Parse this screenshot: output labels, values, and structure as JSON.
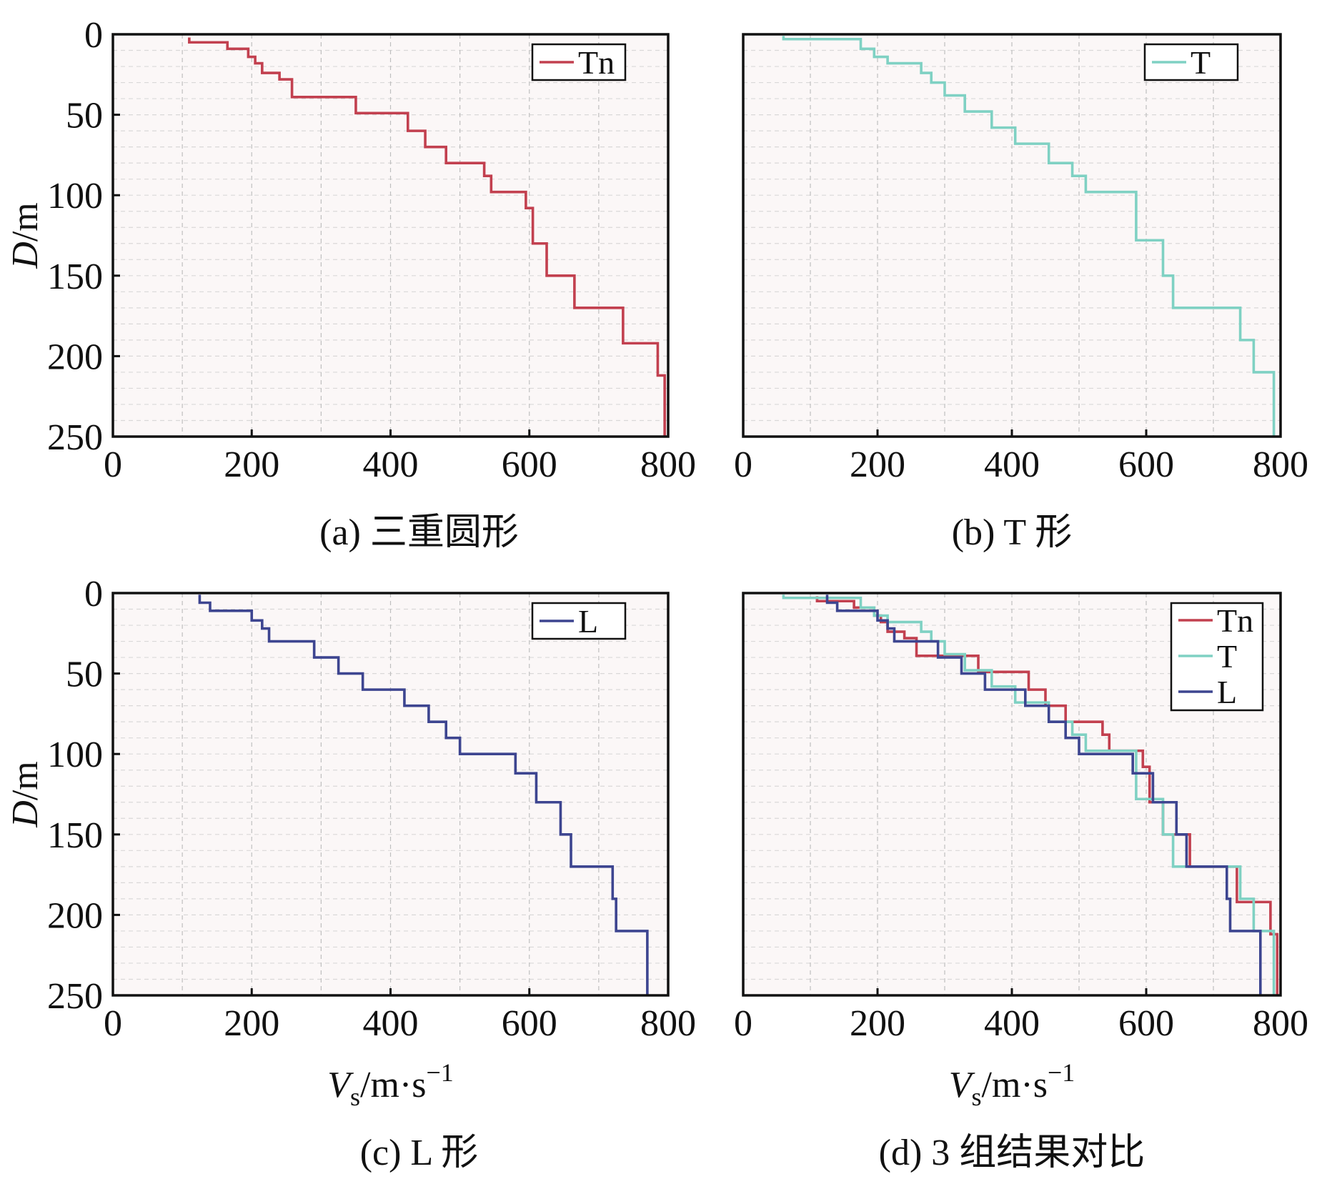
{
  "colors": {
    "Tn": "#c2404f",
    "T": "#7fd1c3",
    "L": "#3d4590",
    "grid": "#bfbfbf",
    "plot_bg": "#fbf7f7"
  },
  "chart_data": [
    {
      "type": "line",
      "panel": "a",
      "caption": "(a) 三重圆形",
      "xlim": [
        0,
        800
      ],
      "ylim": [
        0,
        250
      ],
      "y_inverted": true,
      "x_ticks": [
        "0",
        "200",
        "400",
        "600",
        "800"
      ],
      "y_ticks": [
        "0",
        "50",
        "100",
        "150",
        "200",
        "250"
      ],
      "ylabel": "D/m",
      "xlabel": "",
      "legend_position": "top-right",
      "series": [
        {
          "name": "Tn",
          "color_key": "Tn",
          "profile": [
            {
              "v": 110,
              "top": 2,
              "bottom": 5
            },
            {
              "v": 165,
              "top": 5,
              "bottom": 9
            },
            {
              "v": 195,
              "top": 9,
              "bottom": 14
            },
            {
              "v": 205,
              "top": 14,
              "bottom": 18
            },
            {
              "v": 215,
              "top": 18,
              "bottom": 24
            },
            {
              "v": 240,
              "top": 24,
              "bottom": 28
            },
            {
              "v": 258,
              "top": 28,
              "bottom": 39
            },
            {
              "v": 350,
              "top": 39,
              "bottom": 49
            },
            {
              "v": 425,
              "top": 49,
              "bottom": 60
            },
            {
              "v": 450,
              "top": 60,
              "bottom": 70
            },
            {
              "v": 480,
              "top": 70,
              "bottom": 80
            },
            {
              "v": 535,
              "top": 80,
              "bottom": 88
            },
            {
              "v": 545,
              "top": 88,
              "bottom": 98
            },
            {
              "v": 595,
              "top": 98,
              "bottom": 108
            },
            {
              "v": 605,
              "top": 108,
              "bottom": 130
            },
            {
              "v": 625,
              "top": 130,
              "bottom": 150
            },
            {
              "v": 665,
              "top": 150,
              "bottom": 170
            },
            {
              "v": 735,
              "top": 170,
              "bottom": 192
            },
            {
              "v": 785,
              "top": 192,
              "bottom": 212
            },
            {
              "v": 795,
              "top": 212,
              "bottom": 250
            }
          ]
        }
      ]
    },
    {
      "type": "line",
      "panel": "b",
      "caption": "(b) T 形",
      "xlim": [
        0,
        800
      ],
      "ylim": [
        0,
        250
      ],
      "y_inverted": true,
      "x_ticks": [
        "0",
        "200",
        "400",
        "600",
        "800"
      ],
      "y_ticks": [],
      "ylabel": "",
      "xlabel": "",
      "legend_position": "top-right",
      "series": [
        {
          "name": "T",
          "color_key": "T",
          "profile": [
            {
              "v": 60,
              "top": 1,
              "bottom": 3
            },
            {
              "v": 175,
              "top": 3,
              "bottom": 9
            },
            {
              "v": 195,
              "top": 9,
              "bottom": 14
            },
            {
              "v": 215,
              "top": 14,
              "bottom": 18
            },
            {
              "v": 265,
              "top": 18,
              "bottom": 24
            },
            {
              "v": 280,
              "top": 24,
              "bottom": 30
            },
            {
              "v": 300,
              "top": 30,
              "bottom": 38
            },
            {
              "v": 330,
              "top": 38,
              "bottom": 48
            },
            {
              "v": 370,
              "top": 48,
              "bottom": 58
            },
            {
              "v": 405,
              "top": 58,
              "bottom": 68
            },
            {
              "v": 455,
              "top": 68,
              "bottom": 80
            },
            {
              "v": 490,
              "top": 80,
              "bottom": 88
            },
            {
              "v": 510,
              "top": 88,
              "bottom": 98
            },
            {
              "v": 585,
              "top": 98,
              "bottom": 128
            },
            {
              "v": 625,
              "top": 128,
              "bottom": 150
            },
            {
              "v": 640,
              "top": 150,
              "bottom": 170
            },
            {
              "v": 740,
              "top": 170,
              "bottom": 190
            },
            {
              "v": 760,
              "top": 190,
              "bottom": 210
            },
            {
              "v": 790,
              "top": 210,
              "bottom": 250
            }
          ]
        }
      ]
    },
    {
      "type": "line",
      "panel": "c",
      "caption": "(c) L 形",
      "xlim": [
        0,
        800
      ],
      "ylim": [
        0,
        250
      ],
      "y_inverted": true,
      "x_ticks": [
        "0",
        "200",
        "400",
        "600",
        "800"
      ],
      "y_ticks": [
        "0",
        "50",
        "100",
        "150",
        "200",
        "250"
      ],
      "ylabel": "D/m",
      "xlabel": "Vs/m·s−1",
      "legend_position": "top-right",
      "series": [
        {
          "name": "L",
          "color_key": "L",
          "profile": [
            {
              "v": 125,
              "top": 1,
              "bottom": 6
            },
            {
              "v": 140,
              "top": 6,
              "bottom": 11
            },
            {
              "v": 200,
              "top": 11,
              "bottom": 17
            },
            {
              "v": 215,
              "top": 17,
              "bottom": 22
            },
            {
              "v": 225,
              "top": 22,
              "bottom": 30
            },
            {
              "v": 290,
              "top": 30,
              "bottom": 40
            },
            {
              "v": 325,
              "top": 40,
              "bottom": 50
            },
            {
              "v": 360,
              "top": 50,
              "bottom": 60
            },
            {
              "v": 420,
              "top": 60,
              "bottom": 70
            },
            {
              "v": 455,
              "top": 70,
              "bottom": 80
            },
            {
              "v": 480,
              "top": 80,
              "bottom": 90
            },
            {
              "v": 500,
              "top": 90,
              "bottom": 100
            },
            {
              "v": 580,
              "top": 100,
              "bottom": 112
            },
            {
              "v": 610,
              "top": 112,
              "bottom": 130
            },
            {
              "v": 645,
              "top": 130,
              "bottom": 150
            },
            {
              "v": 660,
              "top": 150,
              "bottom": 170
            },
            {
              "v": 720,
              "top": 170,
              "bottom": 190
            },
            {
              "v": 725,
              "top": 190,
              "bottom": 210
            },
            {
              "v": 770,
              "top": 210,
              "bottom": 250
            }
          ]
        }
      ]
    },
    {
      "type": "line",
      "panel": "d",
      "caption": "(d) 3 组结果对比",
      "xlim": [
        0,
        800
      ],
      "ylim": [
        0,
        250
      ],
      "y_inverted": true,
      "x_ticks": [
        "0",
        "200",
        "400",
        "600",
        "800"
      ],
      "y_ticks": [],
      "ylabel": "",
      "xlabel": "Vs/m·s−1",
      "legend_position": "top-right",
      "series": [
        {
          "name": "Tn",
          "color_key": "Tn",
          "profile": [
            {
              "v": 110,
              "top": 2,
              "bottom": 5
            },
            {
              "v": 165,
              "top": 5,
              "bottom": 9
            },
            {
              "v": 195,
              "top": 9,
              "bottom": 14
            },
            {
              "v": 205,
              "top": 14,
              "bottom": 18
            },
            {
              "v": 215,
              "top": 18,
              "bottom": 24
            },
            {
              "v": 240,
              "top": 24,
              "bottom": 28
            },
            {
              "v": 258,
              "top": 28,
              "bottom": 39
            },
            {
              "v": 350,
              "top": 39,
              "bottom": 49
            },
            {
              "v": 425,
              "top": 49,
              "bottom": 60
            },
            {
              "v": 450,
              "top": 60,
              "bottom": 70
            },
            {
              "v": 480,
              "top": 70,
              "bottom": 80
            },
            {
              "v": 535,
              "top": 80,
              "bottom": 88
            },
            {
              "v": 545,
              "top": 88,
              "bottom": 98
            },
            {
              "v": 595,
              "top": 98,
              "bottom": 108
            },
            {
              "v": 605,
              "top": 108,
              "bottom": 130
            },
            {
              "v": 625,
              "top": 130,
              "bottom": 150
            },
            {
              "v": 665,
              "top": 150,
              "bottom": 170
            },
            {
              "v": 735,
              "top": 170,
              "bottom": 192
            },
            {
              "v": 785,
              "top": 192,
              "bottom": 212
            },
            {
              "v": 795,
              "top": 212,
              "bottom": 250
            }
          ]
        },
        {
          "name": "T",
          "color_key": "T",
          "profile": [
            {
              "v": 60,
              "top": 1,
              "bottom": 3
            },
            {
              "v": 175,
              "top": 3,
              "bottom": 9
            },
            {
              "v": 195,
              "top": 9,
              "bottom": 14
            },
            {
              "v": 215,
              "top": 14,
              "bottom": 18
            },
            {
              "v": 265,
              "top": 18,
              "bottom": 24
            },
            {
              "v": 280,
              "top": 24,
              "bottom": 30
            },
            {
              "v": 300,
              "top": 30,
              "bottom": 38
            },
            {
              "v": 330,
              "top": 38,
              "bottom": 48
            },
            {
              "v": 370,
              "top": 48,
              "bottom": 58
            },
            {
              "v": 405,
              "top": 58,
              "bottom": 68
            },
            {
              "v": 455,
              "top": 68,
              "bottom": 80
            },
            {
              "v": 490,
              "top": 80,
              "bottom": 88
            },
            {
              "v": 510,
              "top": 88,
              "bottom": 98
            },
            {
              "v": 585,
              "top": 98,
              "bottom": 128
            },
            {
              "v": 625,
              "top": 128,
              "bottom": 150
            },
            {
              "v": 640,
              "top": 150,
              "bottom": 170
            },
            {
              "v": 740,
              "top": 170,
              "bottom": 190
            },
            {
              "v": 760,
              "top": 190,
              "bottom": 210
            },
            {
              "v": 790,
              "top": 210,
              "bottom": 250
            }
          ]
        },
        {
          "name": "L",
          "color_key": "L",
          "profile": [
            {
              "v": 125,
              "top": 1,
              "bottom": 6
            },
            {
              "v": 140,
              "top": 6,
              "bottom": 11
            },
            {
              "v": 200,
              "top": 11,
              "bottom": 17
            },
            {
              "v": 215,
              "top": 17,
              "bottom": 22
            },
            {
              "v": 225,
              "top": 22,
              "bottom": 30
            },
            {
              "v": 290,
              "top": 30,
              "bottom": 40
            },
            {
              "v": 325,
              "top": 40,
              "bottom": 50
            },
            {
              "v": 360,
              "top": 50,
              "bottom": 60
            },
            {
              "v": 420,
              "top": 60,
              "bottom": 70
            },
            {
              "v": 455,
              "top": 70,
              "bottom": 80
            },
            {
              "v": 480,
              "top": 80,
              "bottom": 90
            },
            {
              "v": 500,
              "top": 90,
              "bottom": 100
            },
            {
              "v": 580,
              "top": 100,
              "bottom": 112
            },
            {
              "v": 610,
              "top": 112,
              "bottom": 130
            },
            {
              "v": 645,
              "top": 130,
              "bottom": 150
            },
            {
              "v": 660,
              "top": 150,
              "bottom": 170
            },
            {
              "v": 720,
              "top": 170,
              "bottom": 190
            },
            {
              "v": 725,
              "top": 190,
              "bottom": 210
            },
            {
              "v": 770,
              "top": 210,
              "bottom": 250
            }
          ]
        }
      ]
    }
  ]
}
